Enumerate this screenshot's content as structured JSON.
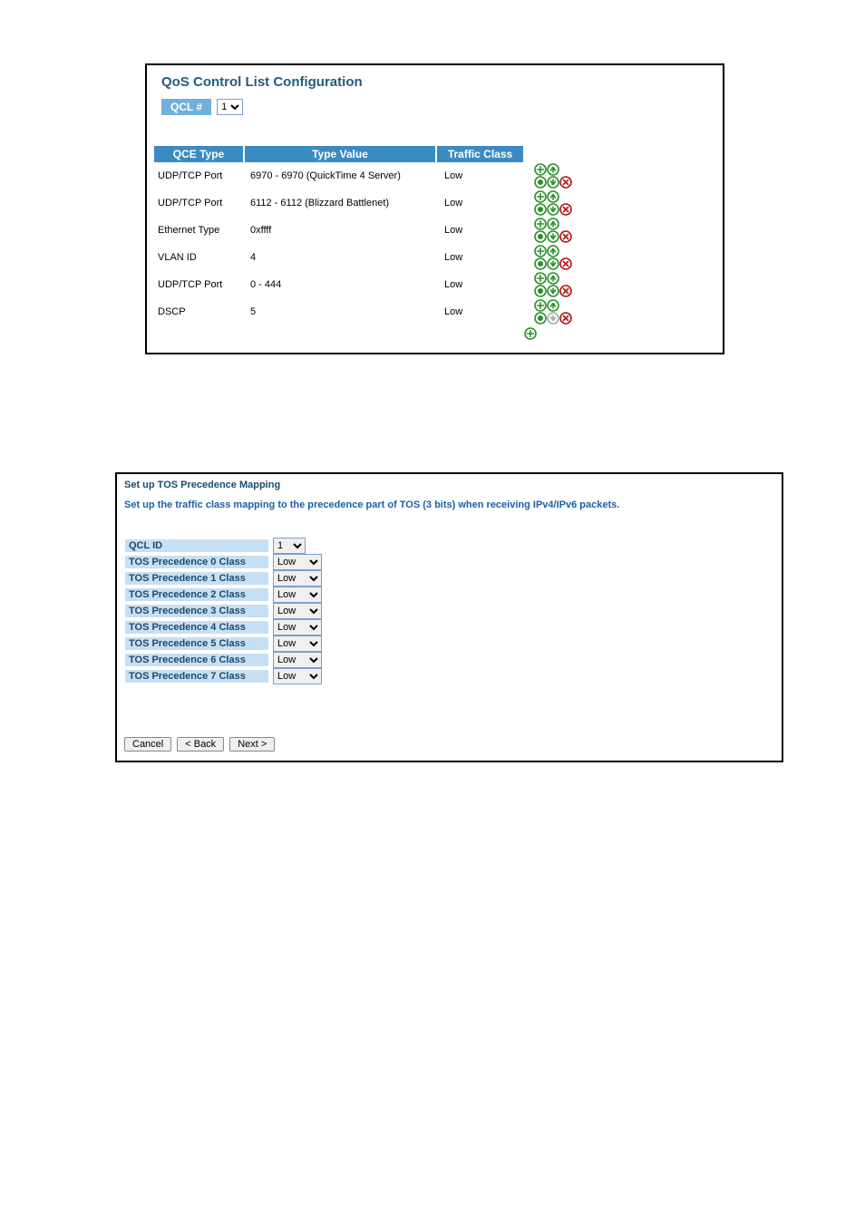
{
  "panel1": {
    "title": "QoS Control List Configuration",
    "qcl_label": "QCL #",
    "qcl_value": "1",
    "header": {
      "c1": "QCE Type",
      "c2": "Type Value",
      "c3": "Traffic Class"
    },
    "rows": [
      {
        "type": "UDP/TCP Port",
        "value": "6970 - 6970 (QuickTime 4 Server)",
        "cls": "Low",
        "down_enabled": true
      },
      {
        "type": "UDP/TCP Port",
        "value": "6112 - 6112 (Blizzard Battlenet)",
        "cls": "Low",
        "down_enabled": true
      },
      {
        "type": "Ethernet Type",
        "value": "0xffff",
        "cls": "Low",
        "down_enabled": true
      },
      {
        "type": "VLAN ID",
        "value": "4",
        "cls": "Low",
        "down_enabled": true
      },
      {
        "type": "UDP/TCP Port",
        "value": "0 - 444",
        "cls": "Low",
        "down_enabled": true
      },
      {
        "type": "DSCP",
        "value": "5",
        "cls": "Low",
        "down_enabled": false
      }
    ]
  },
  "panel2": {
    "title": "Set up TOS Precedence Mapping",
    "desc": "Set up the traffic class mapping to the precedence part of TOS (3 bits) when receiving IPv4/IPv6 packets.",
    "qcl_id_label": "QCL ID",
    "qcl_id_value": "1",
    "rows": [
      {
        "label": "TOS Precedence 0 Class",
        "value": "Low"
      },
      {
        "label": "TOS Precedence 1 Class",
        "value": "Low"
      },
      {
        "label": "TOS Precedence 2 Class",
        "value": "Low"
      },
      {
        "label": "TOS Precedence 3 Class",
        "value": "Low"
      },
      {
        "label": "TOS Precedence 4 Class",
        "value": "Low"
      },
      {
        "label": "TOS Precedence 5 Class",
        "value": "Low"
      },
      {
        "label": "TOS Precedence 6 Class",
        "value": "Low"
      },
      {
        "label": "TOS Precedence 7 Class",
        "value": "Low"
      }
    ],
    "buttons": {
      "cancel": "Cancel",
      "back": "< Back",
      "next": "Next >"
    }
  },
  "colors": {
    "header_bg": "#3b8bc3",
    "icon_green": "#2a8f2a",
    "icon_red": "#b31414",
    "icon_gray": "#a8a8a8"
  }
}
